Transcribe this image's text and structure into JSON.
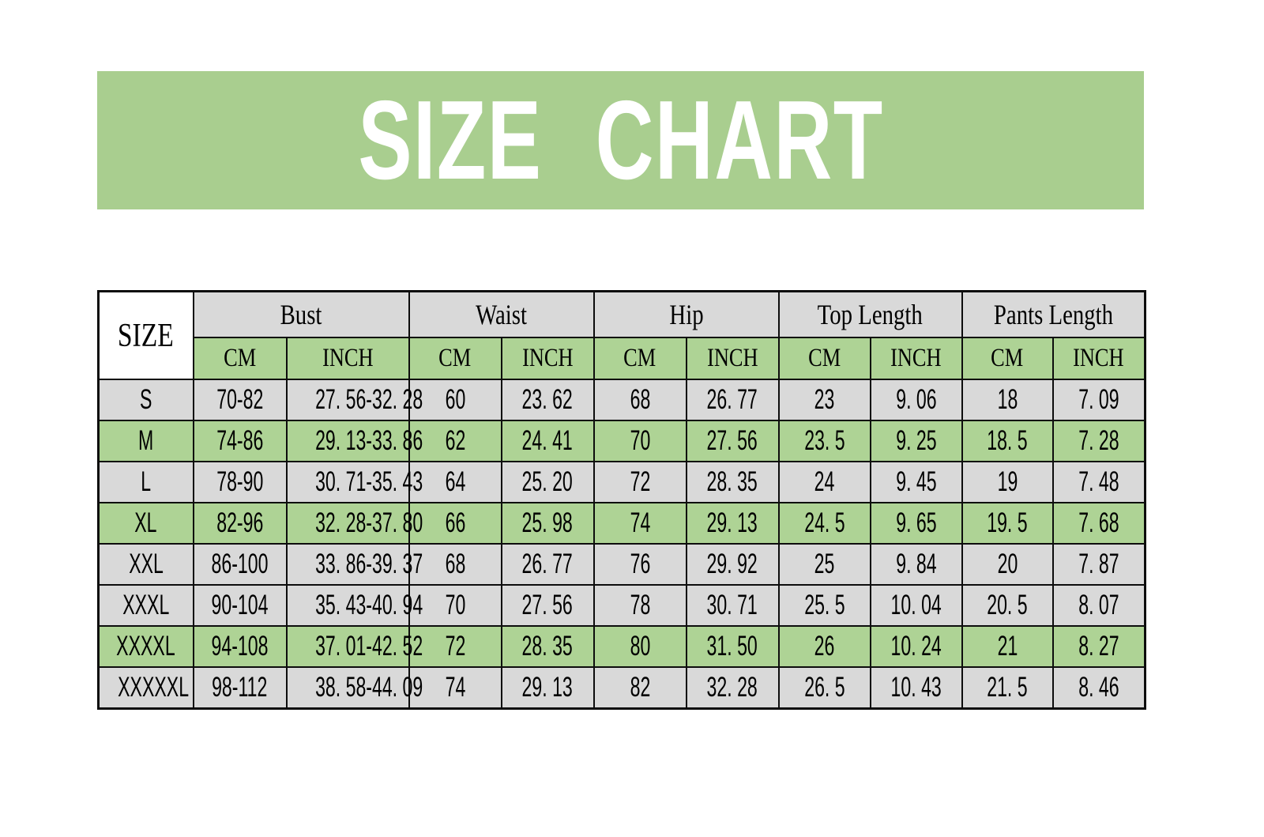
{
  "banner": {
    "title": "SIZE CHART",
    "bg_color": "#a9ce8f",
    "text_color": "#ffffff"
  },
  "table": {
    "corner_label": "SIZE",
    "groups": [
      {
        "label": "Bust"
      },
      {
        "label": "Waist"
      },
      {
        "label": "Hip"
      },
      {
        "label": "Top Length"
      },
      {
        "label": "Pants Length"
      }
    ],
    "unit_labels": [
      "CM",
      "INCH"
    ],
    "colors": {
      "group_header_gray": "#d9d9d9",
      "unit_header_green": "#aed395",
      "row_green": "#aed395",
      "row_gray": "#d9d9d9",
      "corner_white": "#ffffff",
      "border_black": "#0d0d0d"
    },
    "rows": [
      {
        "size": "S",
        "highlight": false,
        "display": [
          "70-82",
          "27. 56-32. 28",
          "60",
          "23. 62",
          "68",
          "26. 77",
          "23",
          "9. 06",
          "18",
          "7. 09"
        ]
      },
      {
        "size": "M",
        "highlight": true,
        "display": [
          "74-86",
          "29. 13-33. 86",
          "62",
          "24. 41",
          "70",
          "27. 56",
          "23. 5",
          "9. 25",
          "18. 5",
          "7. 28"
        ]
      },
      {
        "size": "L",
        "highlight": false,
        "display": [
          "78-90",
          "30. 71-35. 43",
          "64",
          "25. 20",
          "72",
          "28. 35",
          "24",
          "9. 45",
          "19",
          "7. 48"
        ]
      },
      {
        "size": "XL",
        "highlight": true,
        "display": [
          "82-96",
          "32. 28-37. 80",
          "66",
          "25. 98",
          "74",
          "29. 13",
          "24. 5",
          "9. 65",
          "19. 5",
          "7. 68"
        ]
      },
      {
        "size": "XXL",
        "highlight": false,
        "display": [
          "86-100",
          "33. 86-39. 37",
          "68",
          "26. 77",
          "76",
          "29. 92",
          "25",
          "9. 84",
          "20",
          "7. 87"
        ]
      },
      {
        "size": "XXXL",
        "highlight": false,
        "display": [
          "90-104",
          "35. 43-40. 94",
          "70",
          "27. 56",
          "78",
          "30. 71",
          "25. 5",
          "10. 04",
          "20. 5",
          "8. 07"
        ]
      },
      {
        "size": "XXXXL",
        "highlight": true,
        "display": [
          "94-108",
          "37. 01-42. 52",
          "72",
          "28. 35",
          "80",
          "31. 50",
          "26",
          "10. 24",
          "21",
          "8. 27"
        ]
      },
      {
        "size": "XXXXXL",
        "highlight": false,
        "display": [
          "98-112",
          "38. 58-44. 09",
          "74",
          "29. 13",
          "82",
          "32. 28",
          "26. 5",
          "10. 43",
          "21. 5",
          "8. 46"
        ]
      }
    ]
  },
  "chart_data": {
    "type": "table",
    "title": "SIZE CHART",
    "columns": [
      "SIZE",
      "Bust CM",
      "Bust INCH",
      "Waist CM",
      "Waist INCH",
      "Hip CM",
      "Hip INCH",
      "Top Length CM",
      "Top Length INCH",
      "Pants Length CM",
      "Pants Length INCH"
    ],
    "rows": [
      [
        "S",
        "70-82",
        "27.56-32.28",
        "60",
        "23.62",
        "68",
        "26.77",
        "23",
        "9.06",
        "18",
        "7.09"
      ],
      [
        "M",
        "74-86",
        "29.13-33.86",
        "62",
        "24.41",
        "70",
        "27.56",
        "23.5",
        "9.25",
        "18.5",
        "7.28"
      ],
      [
        "L",
        "78-90",
        "30.71-35.43",
        "64",
        "25.20",
        "72",
        "28.35",
        "24",
        "9.45",
        "19",
        "7.48"
      ],
      [
        "XL",
        "82-96",
        "32.28-37.80",
        "66",
        "25.98",
        "74",
        "29.13",
        "24.5",
        "9.65",
        "19.5",
        "7.68"
      ],
      [
        "XXL",
        "86-100",
        "33.86-39.37",
        "68",
        "26.77",
        "76",
        "29.92",
        "25",
        "9.84",
        "20",
        "7.87"
      ],
      [
        "XXXL",
        "90-104",
        "35.43-40.94",
        "70",
        "27.56",
        "78",
        "30.71",
        "25.5",
        "10.04",
        "20.5",
        "8.07"
      ],
      [
        "XXXXL",
        "94-108",
        "37.01-42.52",
        "72",
        "28.35",
        "80",
        "31.50",
        "26",
        "10.24",
        "21",
        "8.27"
      ],
      [
        "XXXXXL",
        "98-112",
        "38.58-44.09",
        "74",
        "29.13",
        "82",
        "32.28",
        "26.5",
        "10.43",
        "21.5",
        "8.46"
      ]
    ],
    "green_highlighted_rows": [
      "M",
      "XL",
      "XXXXL"
    ],
    "layout": "title banner above table; grouped headers with CM/INCH sub-columns"
  }
}
